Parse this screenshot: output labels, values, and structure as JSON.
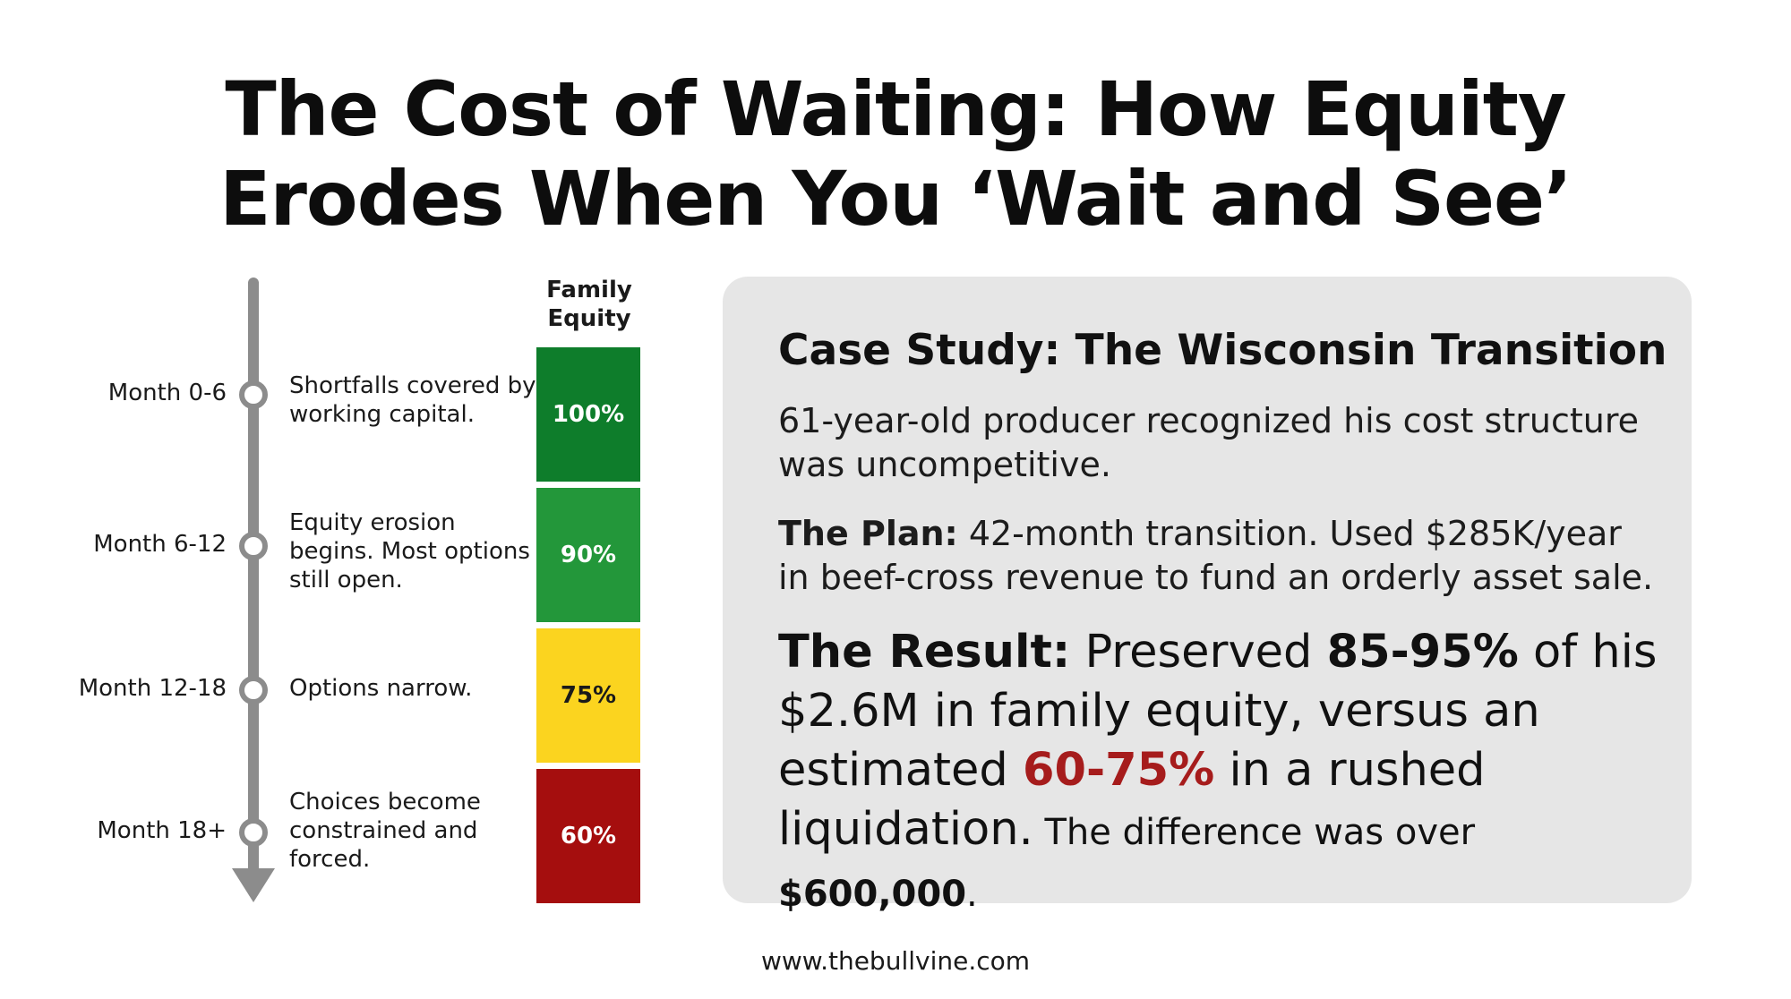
{
  "title": {
    "line1": "The Cost of Waiting: How Equity",
    "line2": "Erodes When You ‘Wait and See’"
  },
  "timeline": {
    "stages": [
      {
        "label": "Month 0-6",
        "description": "Shortfalls covered by working capital."
      },
      {
        "label": "Month 6-12",
        "description": "Equity erosion begins. Most options still open."
      },
      {
        "label": "Month 12-18",
        "description": "Options narrow."
      },
      {
        "label": "Month 18+",
        "description": "Choices become constrained and forced."
      }
    ]
  },
  "equity": {
    "header": "Family Equity",
    "bars": [
      {
        "value": "100%",
        "color": "#0e7d2b",
        "text_color": "#ffffff"
      },
      {
        "value": "90%",
        "color": "#23973a",
        "text_color": "#ffffff"
      },
      {
        "value": "75%",
        "color": "#fbd41f",
        "text_color": "#1a1a1a"
      },
      {
        "value": "60%",
        "color": "#a50e0e",
        "text_color": "#ffffff"
      }
    ]
  },
  "case_study": {
    "title": "Case Study: The Wisconsin Transition",
    "intro": "61-year-old producer recognized his cost structure was uncompetitive.",
    "plan_label": "The Plan:",
    "plan_text": " 42-month transition. Used $285K/year in beef-cross revenue to fund an orderly asset sale.",
    "result_label": "The Result:",
    "result_t1": " Preserved ",
    "result_preserved": "85-95%",
    "result_t2": " of his $2.6M in family equity, versus an estimated ",
    "result_rushed": "60-75%",
    "result_t3": " in a rushed liquidation.",
    "result_t4": " The difference was over ",
    "result_difference": "$600,000",
    "result_t5": "."
  },
  "footer": {
    "url": "www.thebullvine.com"
  },
  "colors": {
    "timeline_gray": "#8c8c8c",
    "card_background": "#e6e6e6",
    "highlight_red": "#a61c1c"
  }
}
